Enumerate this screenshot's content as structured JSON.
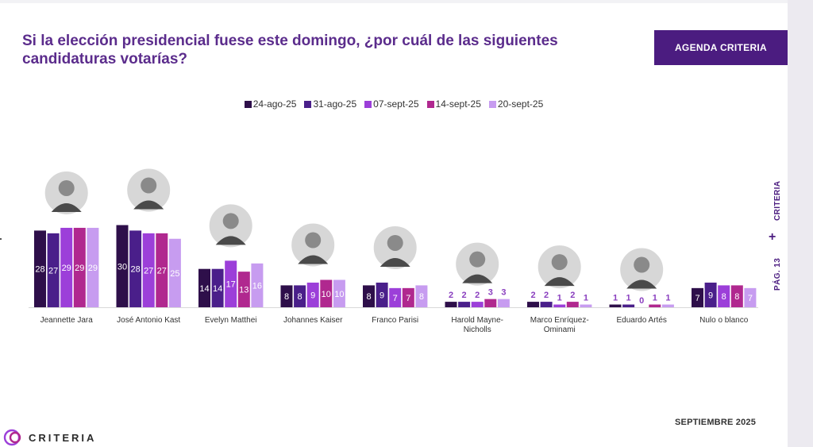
{
  "header": {
    "title": "Si la elección presidencial fuese este domingo, ¿por cuál de las siguientes candidaturas votarías?",
    "badge": "AGENDA CRITERIA"
  },
  "sidebar": {
    "page": "PÁG. 13",
    "brand": "CRITERIA"
  },
  "footer": {
    "month": "SEPTIEMBRE 2025",
    "brand": "CRITERIA"
  },
  "colors": {
    "series": [
      "#2e0f4a",
      "#4a1f8a",
      "#9c3fd9",
      "#b0288f",
      "#c79cf0"
    ],
    "label_light": "#ffffff",
    "label_dark": "#8a3fbf"
  },
  "chart_data": {
    "type": "bar",
    "title": "Si la elección presidencial fuese este domingo, ¿por cuál de las siguientes candidaturas votarías?",
    "xlabel": "",
    "ylabel": "",
    "ylim": [
      0,
      32
    ],
    "legend_position": "top-center",
    "categories": [
      "Jeannette Jara",
      "José Antonio Kast",
      "Evelyn Matthei",
      "Johannes Kaiser",
      "Franco Parisi",
      "Harold Mayne-Nicholls",
      "Marco Enríquez-Ominami",
      "Eduardo Artés",
      "Nulo o blanco"
    ],
    "category_lines": [
      [
        "Jeannette Jara"
      ],
      [
        "José Antonio Kast"
      ],
      [
        "Evelyn Matthei"
      ],
      [
        "Johannes Kaiser"
      ],
      [
        "Franco Parisi"
      ],
      [
        "Harold Mayne-",
        "Nicholls"
      ],
      [
        "Marco Enríquez-",
        "Ominami"
      ],
      [
        "Eduardo Artés"
      ],
      [
        "Nulo o blanco"
      ]
    ],
    "series": [
      {
        "name": "24-ago-25",
        "values": [
          28,
          30,
          14,
          8,
          8,
          2,
          2,
          1,
          7
        ]
      },
      {
        "name": "31-ago-25",
        "values": [
          27,
          28,
          14,
          8,
          9,
          2,
          2,
          1,
          9
        ]
      },
      {
        "name": "07-sept-25",
        "values": [
          29,
          27,
          17,
          9,
          7,
          2,
          1,
          0,
          8
        ]
      },
      {
        "name": "14-sept-25",
        "values": [
          29,
          27,
          13,
          10,
          7,
          3,
          2,
          1,
          8
        ]
      },
      {
        "name": "20-sept-25",
        "values": [
          29,
          25,
          16,
          10,
          8,
          3,
          1,
          1,
          7
        ]
      }
    ]
  }
}
